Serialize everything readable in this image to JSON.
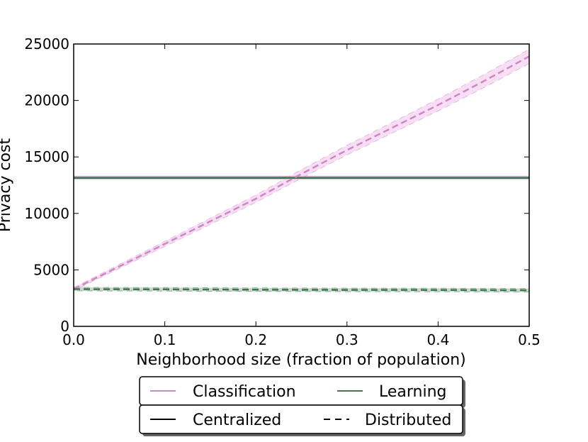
{
  "chart_data": {
    "type": "line",
    "title": "",
    "xlabel": "Neighborhood size (fraction of population)",
    "ylabel": "Privacy cost",
    "xlim": [
      0.0,
      0.5
    ],
    "ylim": [
      0,
      25000
    ],
    "xticks": [
      "0.0",
      "0.1",
      "0.2",
      "0.3",
      "0.4",
      "0.5"
    ],
    "yticks": [
      "0",
      "5000",
      "10000",
      "15000",
      "20000",
      "25000"
    ],
    "grid": false,
    "legend_placement": "below",
    "colors": {
      "classification": "#cc88c4",
      "learning": "#3a7a4a"
    },
    "legend_color": {
      "classification": "Classification",
      "learning": "Learning"
    },
    "legend_style": {
      "centralized": "Centralized",
      "distributed": "Distributed"
    },
    "series": [
      {
        "task": "classification",
        "mode": "centralized",
        "x": [
          0.0,
          0.5
        ],
        "y": [
          13200,
          13200
        ]
      },
      {
        "task": "learning",
        "mode": "centralized",
        "x": [
          0.0,
          0.5
        ],
        "y": [
          13150,
          13150
        ]
      },
      {
        "task": "classification",
        "mode": "distributed",
        "x": [
          0.0,
          0.05,
          0.1,
          0.15,
          0.2,
          0.25,
          0.3,
          0.35,
          0.4,
          0.45,
          0.5
        ],
        "y": [
          3300,
          5300,
          7300,
          9300,
          11300,
          13500,
          15600,
          17600,
          19600,
          21700,
          23900
        ]
      },
      {
        "task": "learning",
        "mode": "distributed",
        "x": [
          0.0,
          0.1,
          0.2,
          0.3,
          0.4,
          0.5
        ],
        "y": [
          3300,
          3280,
          3250,
          3230,
          3220,
          3200
        ]
      }
    ]
  }
}
